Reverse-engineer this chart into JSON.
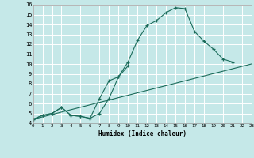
{
  "xlabel": "Humidex (Indice chaleur)",
  "xlim": [
    0,
    23
  ],
  "ylim": [
    4,
    16
  ],
  "xticks": [
    0,
    1,
    2,
    3,
    4,
    5,
    6,
    7,
    8,
    9,
    10,
    11,
    12,
    13,
    14,
    15,
    16,
    17,
    18,
    19,
    20,
    21,
    22,
    23
  ],
  "yticks": [
    4,
    5,
    6,
    7,
    8,
    9,
    10,
    11,
    12,
    13,
    14,
    15,
    16
  ],
  "bg_color": "#c5e8e8",
  "line_color": "#1a6b5a",
  "grid_color": "#ffffff",
  "line1_x": [
    0,
    1,
    2,
    3,
    4,
    5,
    6,
    7,
    8,
    9,
    10,
    11,
    12,
    13,
    14,
    15,
    16,
    17,
    18,
    19,
    20,
    21
  ],
  "line1_y": [
    4.4,
    4.8,
    5.0,
    5.6,
    4.8,
    4.7,
    4.5,
    6.5,
    8.3,
    8.7,
    10.2,
    12.4,
    13.9,
    14.4,
    15.2,
    15.7,
    15.6,
    13.3,
    12.3,
    11.5,
    10.5,
    10.2
  ],
  "line2_x": [
    0,
    1,
    2,
    3,
    4,
    5,
    6,
    7,
    8,
    9,
    10
  ],
  "line2_y": [
    4.4,
    4.8,
    5.0,
    5.6,
    4.8,
    4.7,
    4.5,
    5.0,
    6.5,
    8.7,
    9.8
  ],
  "line3_x": [
    0,
    23
  ],
  "line3_y": [
    4.4,
    10.0
  ]
}
